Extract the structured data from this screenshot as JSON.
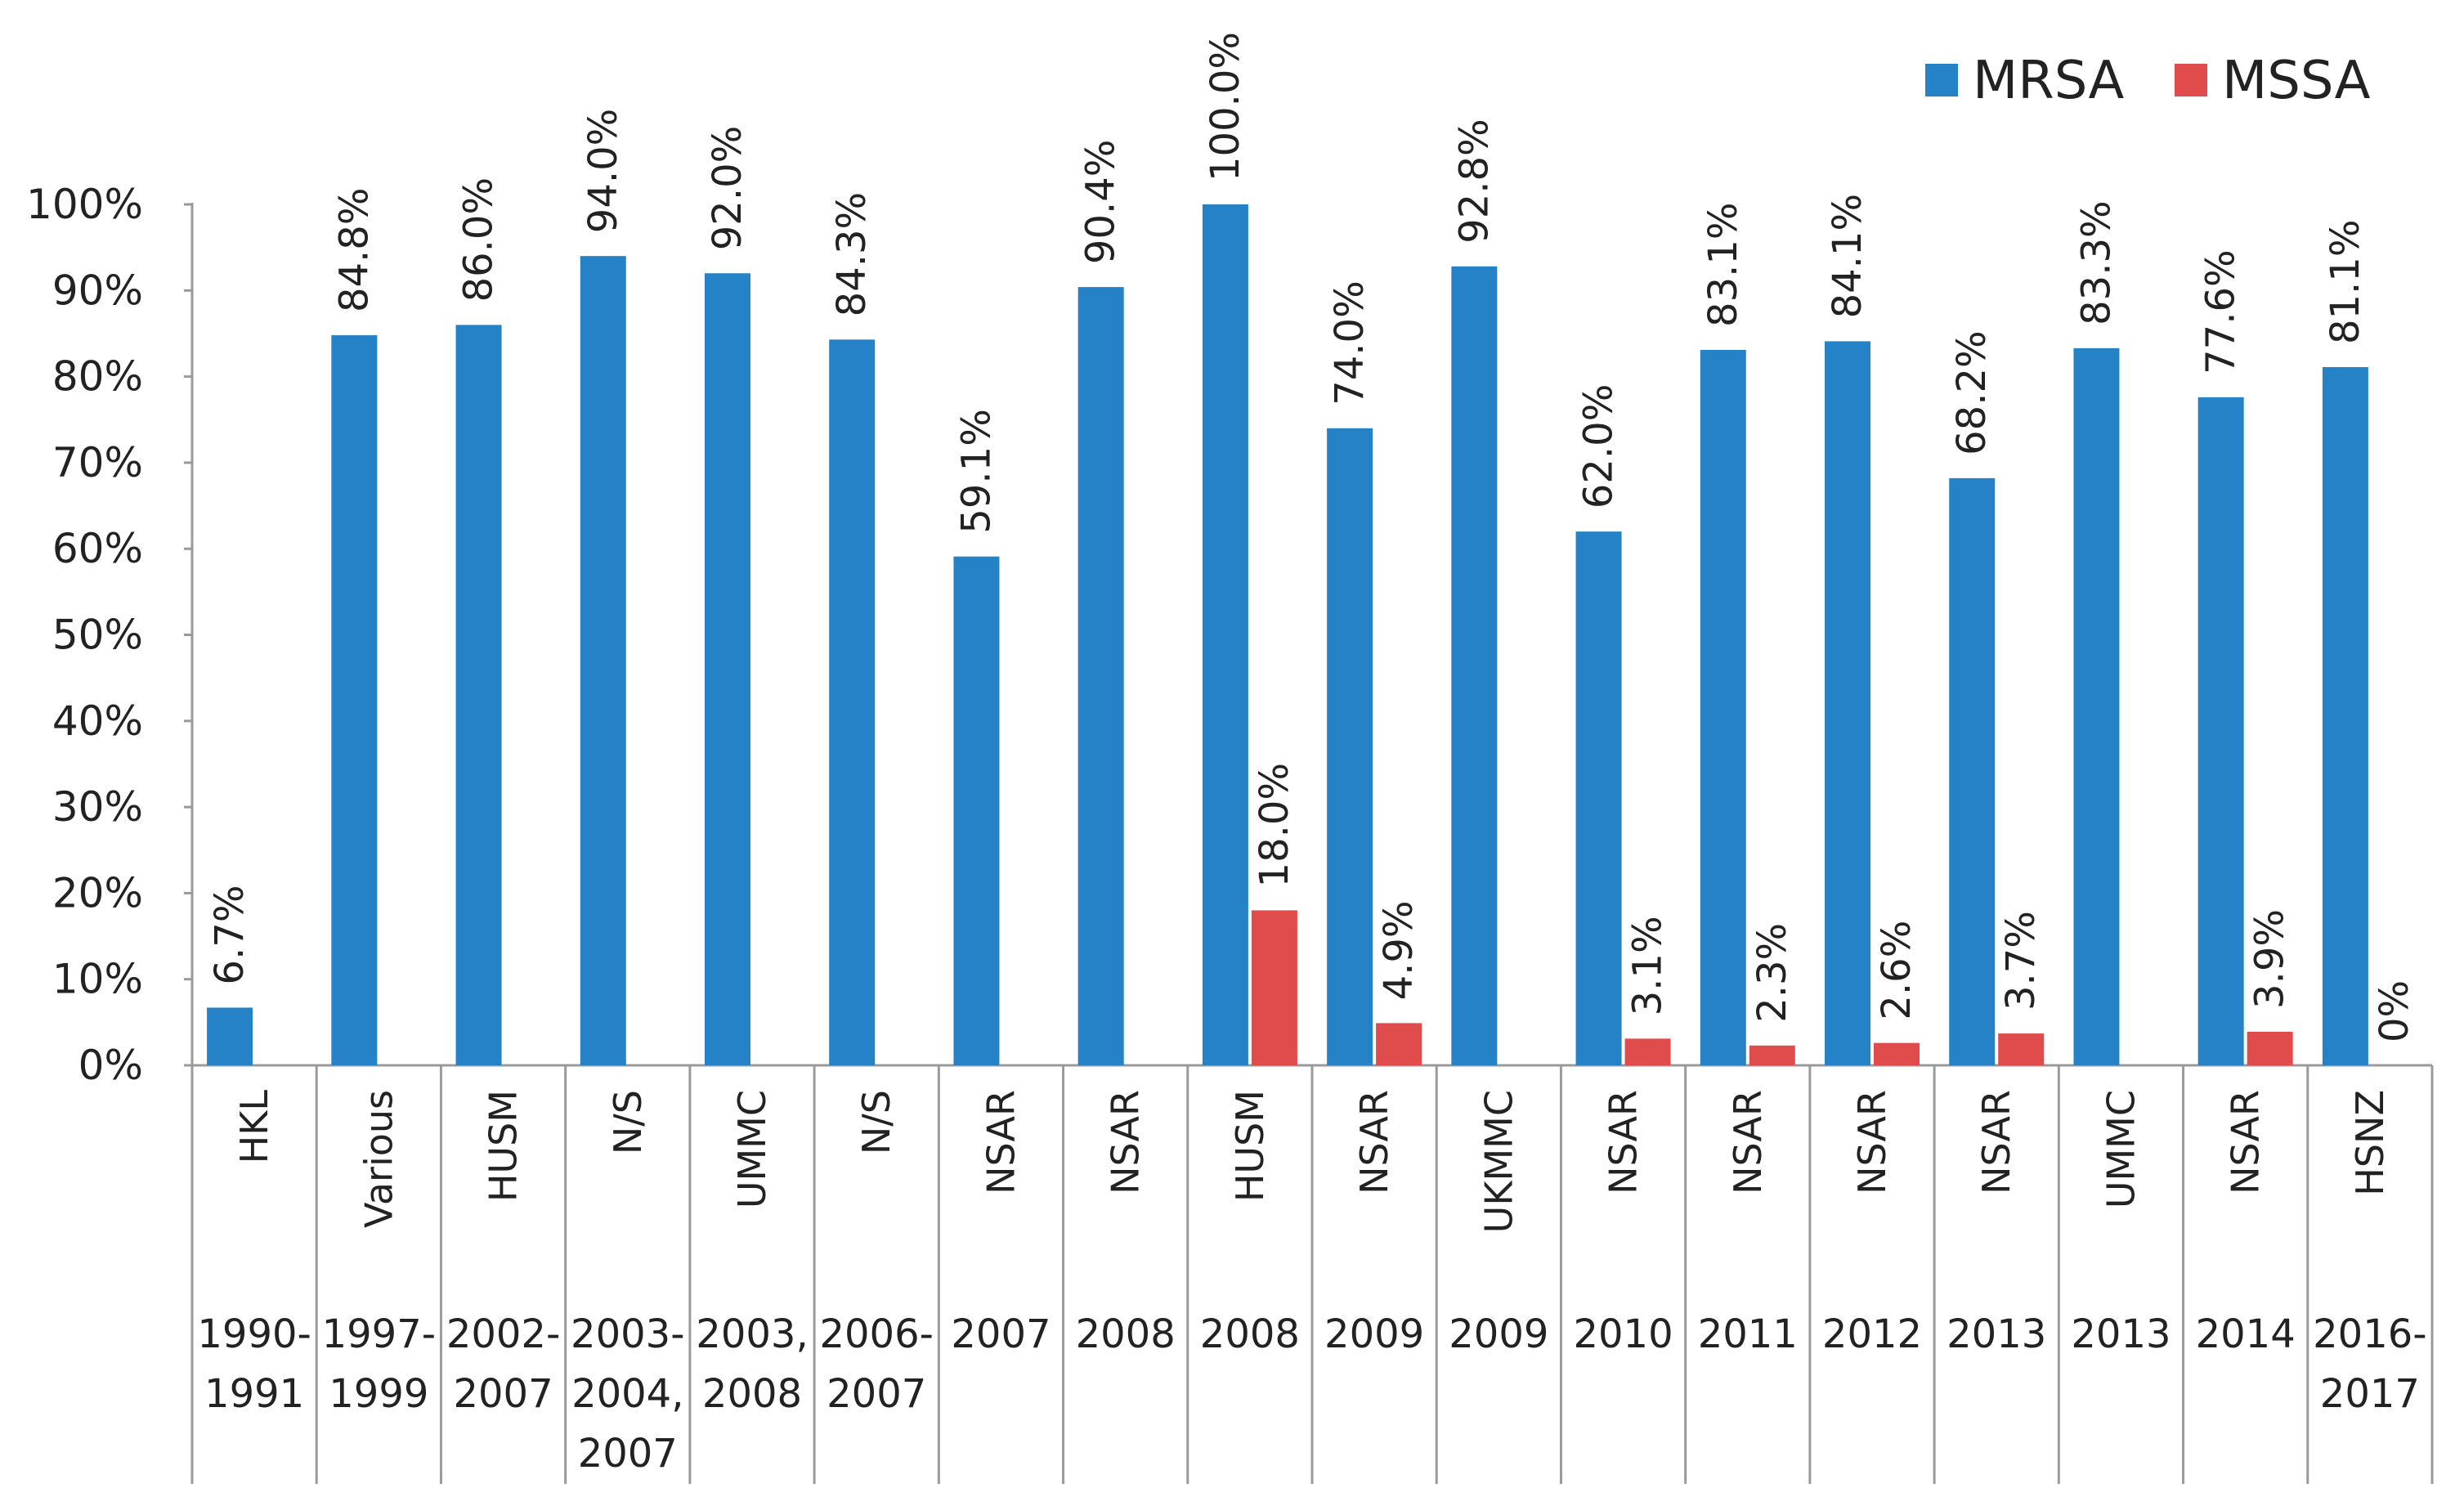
{
  "chart_data": {
    "type": "bar",
    "title": "",
    "xlabel": "",
    "ylabel": "",
    "ylim": [
      0,
      100
    ],
    "yticks": [
      "0%",
      "10%",
      "20%",
      "30%",
      "40%",
      "50%",
      "60%",
      "70%",
      "80%",
      "90%",
      "100%"
    ],
    "legend_position": "top-right",
    "categories": [
      {
        "site": "HKL",
        "period": [
          "1990-",
          "1991"
        ]
      },
      {
        "site": "Various",
        "period": [
          "1997-",
          "1999"
        ]
      },
      {
        "site": "HUSM",
        "period": [
          "2002-",
          "2007"
        ]
      },
      {
        "site": "N/S",
        "period": [
          "2003-",
          "2004,",
          "2007"
        ]
      },
      {
        "site": "UMMC",
        "period": [
          "2003,",
          "2008"
        ]
      },
      {
        "site": "N/S",
        "period": [
          "2006-",
          "2007"
        ]
      },
      {
        "site": "NSAR",
        "period": [
          "2007"
        ]
      },
      {
        "site": "NSAR",
        "period": [
          "2008"
        ]
      },
      {
        "site": "HUSM",
        "period": [
          "2008"
        ]
      },
      {
        "site": "NSAR",
        "period": [
          "2009"
        ]
      },
      {
        "site": "UKMMC",
        "period": [
          "2009"
        ]
      },
      {
        "site": "NSAR",
        "period": [
          "2010"
        ]
      },
      {
        "site": "NSAR",
        "period": [
          "2011"
        ]
      },
      {
        "site": "NSAR",
        "period": [
          "2012"
        ]
      },
      {
        "site": "NSAR",
        "period": [
          "2013"
        ]
      },
      {
        "site": "UMMC",
        "period": [
          "2013"
        ]
      },
      {
        "site": "NSAR",
        "period": [
          "2014"
        ]
      },
      {
        "site": "HSNZ",
        "period": [
          "2016-",
          "2017"
        ]
      }
    ],
    "series": [
      {
        "name": "MRSA",
        "color": "#2582c6",
        "values": [
          6.7,
          84.8,
          86.0,
          94.0,
          92.0,
          84.3,
          59.1,
          90.4,
          100.0,
          74.0,
          92.8,
          62.0,
          83.1,
          84.1,
          68.2,
          83.3,
          77.6,
          81.1
        ],
        "labels": [
          "6.7%",
          "84.8%",
          "86.0%",
          "94.0%",
          "92.0%",
          "84.3%",
          "59.1%",
          "90.4%",
          "100.0%",
          "74.0%",
          "92.8%",
          "62.0%",
          "83.1%",
          "84.1%",
          "68.2%",
          "83.3%",
          "77.6%",
          "81.1%"
        ]
      },
      {
        "name": "MSSA",
        "color": "#e04b4b",
        "values": [
          null,
          null,
          null,
          null,
          null,
          null,
          null,
          null,
          18.0,
          4.9,
          null,
          3.1,
          2.3,
          2.6,
          3.7,
          null,
          3.9,
          0
        ],
        "labels": [
          null,
          null,
          null,
          null,
          null,
          null,
          null,
          null,
          "18.0%",
          "4.9%",
          null,
          "3.1%",
          "2.3%",
          "2.6%",
          "3.7%",
          null,
          "3.9%",
          "0%"
        ]
      }
    ]
  }
}
